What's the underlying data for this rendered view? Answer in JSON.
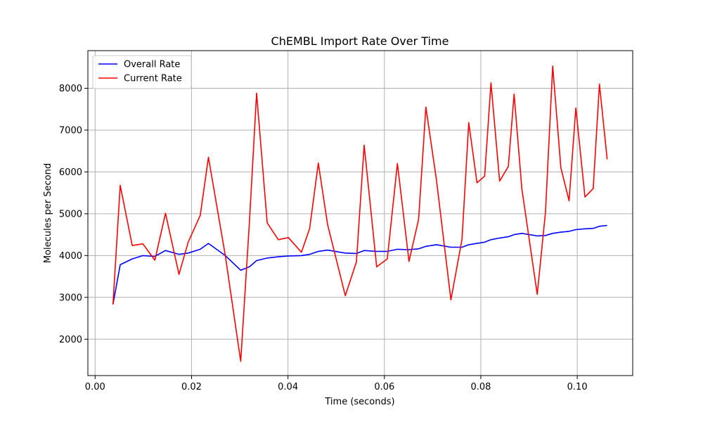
{
  "chart_data": {
    "type": "line",
    "title": "ChEMBL Import Rate Over Time",
    "xlabel": "Time (seconds)",
    "ylabel": "Molecules per Second",
    "xlim": [
      -0.0015,
      0.1115
    ],
    "ylim": [
      1130,
      8900
    ],
    "xticks": [
      0.0,
      0.02,
      0.04,
      0.06,
      0.08,
      0.1
    ],
    "xtick_labels": [
      "0.00",
      "0.02",
      "0.04",
      "0.06",
      "0.08",
      "0.10"
    ],
    "yticks": [
      2000,
      3000,
      4000,
      5000,
      6000,
      7000,
      8000
    ],
    "ytick_labels": [
      "2000",
      "3000",
      "4000",
      "5000",
      "6000",
      "7000",
      "8000"
    ],
    "grid": true,
    "legend_position": "upper-left",
    "x": [
      0.0037,
      0.0052,
      0.0077,
      0.0099,
      0.0124,
      0.0146,
      0.0174,
      0.0193,
      0.0218,
      0.0235,
      0.027,
      0.0302,
      0.032,
      0.0335,
      0.0357,
      0.038,
      0.0401,
      0.0428,
      0.0445,
      0.0463,
      0.0482,
      0.0519,
      0.0542,
      0.0558,
      0.0584,
      0.0606,
      0.0627,
      0.0651,
      0.0671,
      0.0686,
      0.0708,
      0.0738,
      0.0761,
      0.0775,
      0.0792,
      0.0808,
      0.0821,
      0.0839,
      0.0857,
      0.0869,
      0.0885,
      0.0917,
      0.0934,
      0.0949,
      0.0966,
      0.0983,
      0.0997,
      0.1016,
      0.1033,
      0.1046,
      0.1062
    ],
    "series": [
      {
        "name": "Overall Rate",
        "color": "#0000ff",
        "values": [
          2830,
          3780,
          3920,
          4000,
          3980,
          4120,
          4030,
          4060,
          4150,
          4290,
          4000,
          3650,
          3730,
          3880,
          3940,
          3970,
          3990,
          4000,
          4030,
          4100,
          4130,
          4060,
          4050,
          4120,
          4100,
          4100,
          4150,
          4140,
          4160,
          4220,
          4260,
          4200,
          4200,
          4260,
          4290,
          4320,
          4380,
          4420,
          4450,
          4500,
          4530,
          4470,
          4480,
          4530,
          4560,
          4580,
          4620,
          4640,
          4650,
          4700,
          4720
        ]
      },
      {
        "name": "Current Rate",
        "color": "#ff0000",
        "values": [
          2830,
          5680,
          4240,
          4280,
          3890,
          5010,
          3550,
          4320,
          4960,
          6350,
          4000,
          1470,
          4800,
          7880,
          4780,
          4380,
          4430,
          4080,
          4650,
          6210,
          4750,
          3040,
          3850,
          6640,
          3730,
          3920,
          6200,
          3860,
          4870,
          7550,
          5800,
          2940,
          4390,
          7180,
          5740,
          5900,
          8130,
          5780,
          6130,
          7860,
          5600,
          3070,
          5030,
          8530,
          6100,
          5310,
          7530,
          5400,
          5600,
          8100,
          6300
        ]
      }
    ]
  }
}
